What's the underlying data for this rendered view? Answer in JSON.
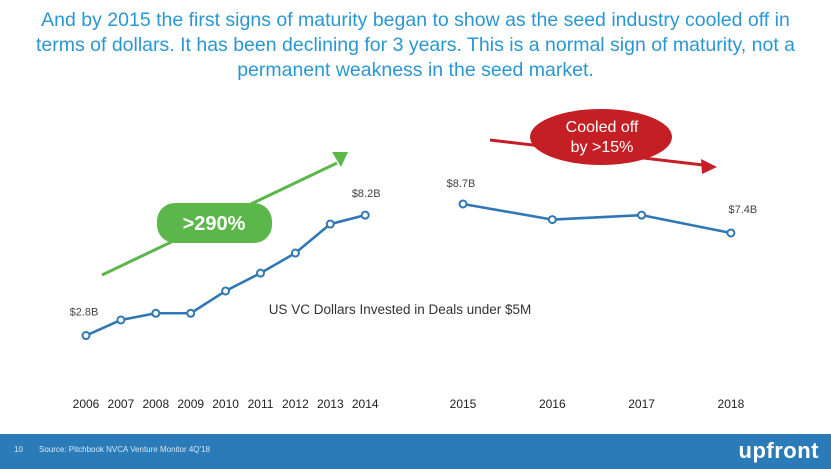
{
  "headline": {
    "lines": [
      "And by 2015 the first signs of maturity began to show as the seed industry cooled off in",
      "terms of dollars. It has been declining for 3 years. This is a normal sign of maturity, not a",
      "permanent weakness in the seed market."
    ]
  },
  "colors": {
    "headline": "#2a97d3",
    "line": "#2f78b5",
    "growth_arrow": "#5cb74a",
    "decline_arrow": "#c41f25",
    "footer": "#2a7bb8"
  },
  "chart_data": [
    {
      "type": "line",
      "title": "US VC Dollars Invested in Deals under $5M",
      "x": [
        "2006",
        "2007",
        "2008",
        "2009",
        "2010",
        "2011",
        "2012",
        "2013",
        "2014"
      ],
      "values": [
        2.8,
        3.5,
        3.8,
        3.8,
        4.8,
        5.6,
        6.5,
        7.8,
        8.2
      ],
      "unit": "$B",
      "ylim": [
        0,
        10
      ],
      "point_labels": {
        "start": "$2.8B",
        "end": "$8.2B"
      },
      "annotation": ">290%",
      "grid": false
    },
    {
      "type": "line",
      "x": [
        "2015",
        "2016",
        "2017",
        "2018"
      ],
      "values": [
        8.7,
        8.0,
        8.2,
        7.4
      ],
      "unit": "$B",
      "ylim": [
        0,
        10
      ],
      "point_labels": {
        "start": "$8.7B",
        "end": "$7.4B"
      },
      "annotation": [
        "Cooled off",
        "by >15%"
      ],
      "grid": false
    }
  ],
  "footer": {
    "page_number": "10",
    "source": "Source: Pitchbook NVCA Venture Monitor 4Q'18",
    "brand": "upfront"
  }
}
